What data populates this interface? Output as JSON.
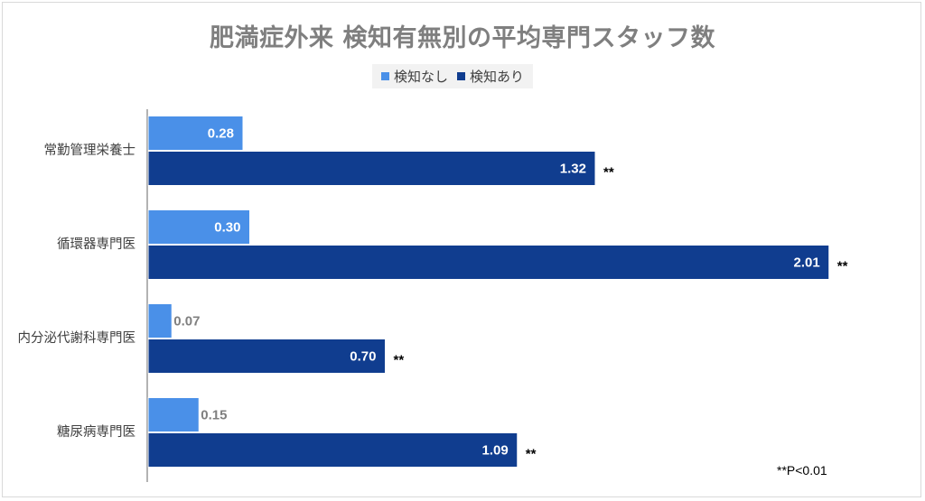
{
  "chart_data": {
    "type": "bar",
    "orientation": "horizontal",
    "title": "肥満症外来 検知有無別の平均専門スタッフ数",
    "categories": [
      "常勤管理栄養士",
      "循環器専門医",
      "内分泌代謝科専門医",
      "糖尿病専門医"
    ],
    "series": [
      {
        "name": "検知なし",
        "values": [
          0.28,
          0.3,
          0.07,
          0.15
        ],
        "color": "#4a90e8"
      },
      {
        "name": "検知あり",
        "values": [
          1.32,
          2.01,
          0.7,
          1.09
        ],
        "color": "#103d8f"
      }
    ],
    "significance": [
      "**",
      "**",
      "**",
      "**"
    ],
    "footnote": "**P<0.01",
    "xlim": [
      0,
      2.2
    ],
    "grid": false,
    "legend": "top"
  }
}
